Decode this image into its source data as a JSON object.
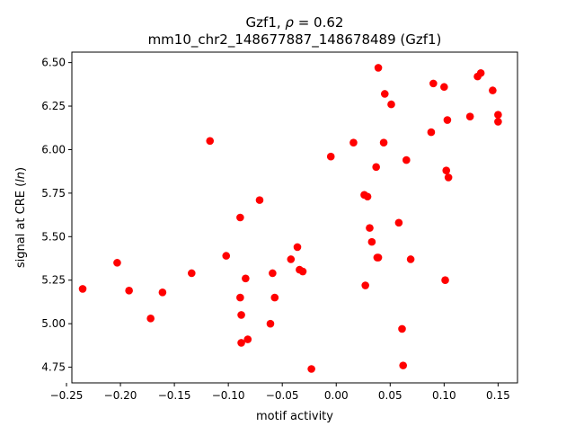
{
  "chart_data": {
    "type": "scatter",
    "title_line1_prefix": "Gzf1, ",
    "title_line1_symbol": "ρ",
    "title_line1_suffix": " = 0.62",
    "title_line2": "mm10_chr2_148677887_148678489 (Gzf1)",
    "xlabel": "motif activity",
    "ylabel_prefix": "signal at CRE (",
    "ylabel_italic": "ln",
    "ylabel_suffix": ")",
    "xlim": [
      -0.245,
      0.168
    ],
    "ylim": [
      4.66,
      6.56
    ],
    "x_ticks": [
      -0.25,
      -0.2,
      -0.15,
      -0.1,
      -0.05,
      0.0,
      0.05,
      0.1,
      0.15
    ],
    "x_tick_labels": [
      "−0.25",
      "−0.20",
      "−0.15",
      "−0.10",
      "−0.05",
      "0.00",
      "0.05",
      "0.10",
      "0.15"
    ],
    "y_ticks": [
      4.75,
      5.0,
      5.25,
      5.5,
      5.75,
      6.0,
      6.25,
      6.5
    ],
    "y_tick_labels": [
      "4.75",
      "5.00",
      "5.25",
      "5.50",
      "5.75",
      "6.00",
      "6.25",
      "6.50"
    ],
    "marker_color": "#ff0000",
    "grid": false,
    "points": [
      {
        "x": -0.235,
        "y": 5.2
      },
      {
        "x": -0.203,
        "y": 5.35
      },
      {
        "x": -0.192,
        "y": 5.19
      },
      {
        "x": -0.172,
        "y": 5.03
      },
      {
        "x": -0.161,
        "y": 5.18
      },
      {
        "x": -0.134,
        "y": 5.29
      },
      {
        "x": -0.117,
        "y": 6.05
      },
      {
        "x": -0.102,
        "y": 5.39
      },
      {
        "x": -0.089,
        "y": 5.61
      },
      {
        "x": -0.089,
        "y": 5.15
      },
      {
        "x": -0.088,
        "y": 5.05
      },
      {
        "x": -0.088,
        "y": 4.89
      },
      {
        "x": -0.084,
        "y": 5.26
      },
      {
        "x": -0.082,
        "y": 4.91
      },
      {
        "x": -0.071,
        "y": 5.71
      },
      {
        "x": -0.061,
        "y": 5.0
      },
      {
        "x": -0.059,
        "y": 5.29
      },
      {
        "x": -0.057,
        "y": 5.15
      },
      {
        "x": -0.042,
        "y": 5.37
      },
      {
        "x": -0.036,
        "y": 5.44
      },
      {
        "x": -0.034,
        "y": 5.31
      },
      {
        "x": -0.031,
        "y": 5.3
      },
      {
        "x": -0.023,
        "y": 4.74
      },
      {
        "x": -0.005,
        "y": 5.96
      },
      {
        "x": 0.016,
        "y": 6.04
      },
      {
        "x": 0.026,
        "y": 5.74
      },
      {
        "x": 0.027,
        "y": 5.22
      },
      {
        "x": 0.029,
        "y": 5.73
      },
      {
        "x": 0.031,
        "y": 5.55
      },
      {
        "x": 0.033,
        "y": 5.47
      },
      {
        "x": 0.037,
        "y": 5.9
      },
      {
        "x": 0.038,
        "y": 5.38
      },
      {
        "x": 0.039,
        "y": 6.47
      },
      {
        "x": 0.039,
        "y": 5.38
      },
      {
        "x": 0.044,
        "y": 6.04
      },
      {
        "x": 0.045,
        "y": 6.32
      },
      {
        "x": 0.051,
        "y": 6.26
      },
      {
        "x": 0.058,
        "y": 5.58
      },
      {
        "x": 0.061,
        "y": 4.97
      },
      {
        "x": 0.062,
        "y": 4.76
      },
      {
        "x": 0.065,
        "y": 5.94
      },
      {
        "x": 0.069,
        "y": 5.37
      },
      {
        "x": 0.088,
        "y": 6.1
      },
      {
        "x": 0.09,
        "y": 6.38
      },
      {
        "x": 0.1,
        "y": 6.36
      },
      {
        "x": 0.101,
        "y": 5.25
      },
      {
        "x": 0.102,
        "y": 5.88
      },
      {
        "x": 0.103,
        "y": 6.17
      },
      {
        "x": 0.104,
        "y": 5.84
      },
      {
        "x": 0.124,
        "y": 6.19
      },
      {
        "x": 0.131,
        "y": 6.42
      },
      {
        "x": 0.134,
        "y": 6.44
      },
      {
        "x": 0.145,
        "y": 6.34
      },
      {
        "x": 0.15,
        "y": 6.2
      },
      {
        "x": 0.15,
        "y": 6.16
      }
    ]
  }
}
